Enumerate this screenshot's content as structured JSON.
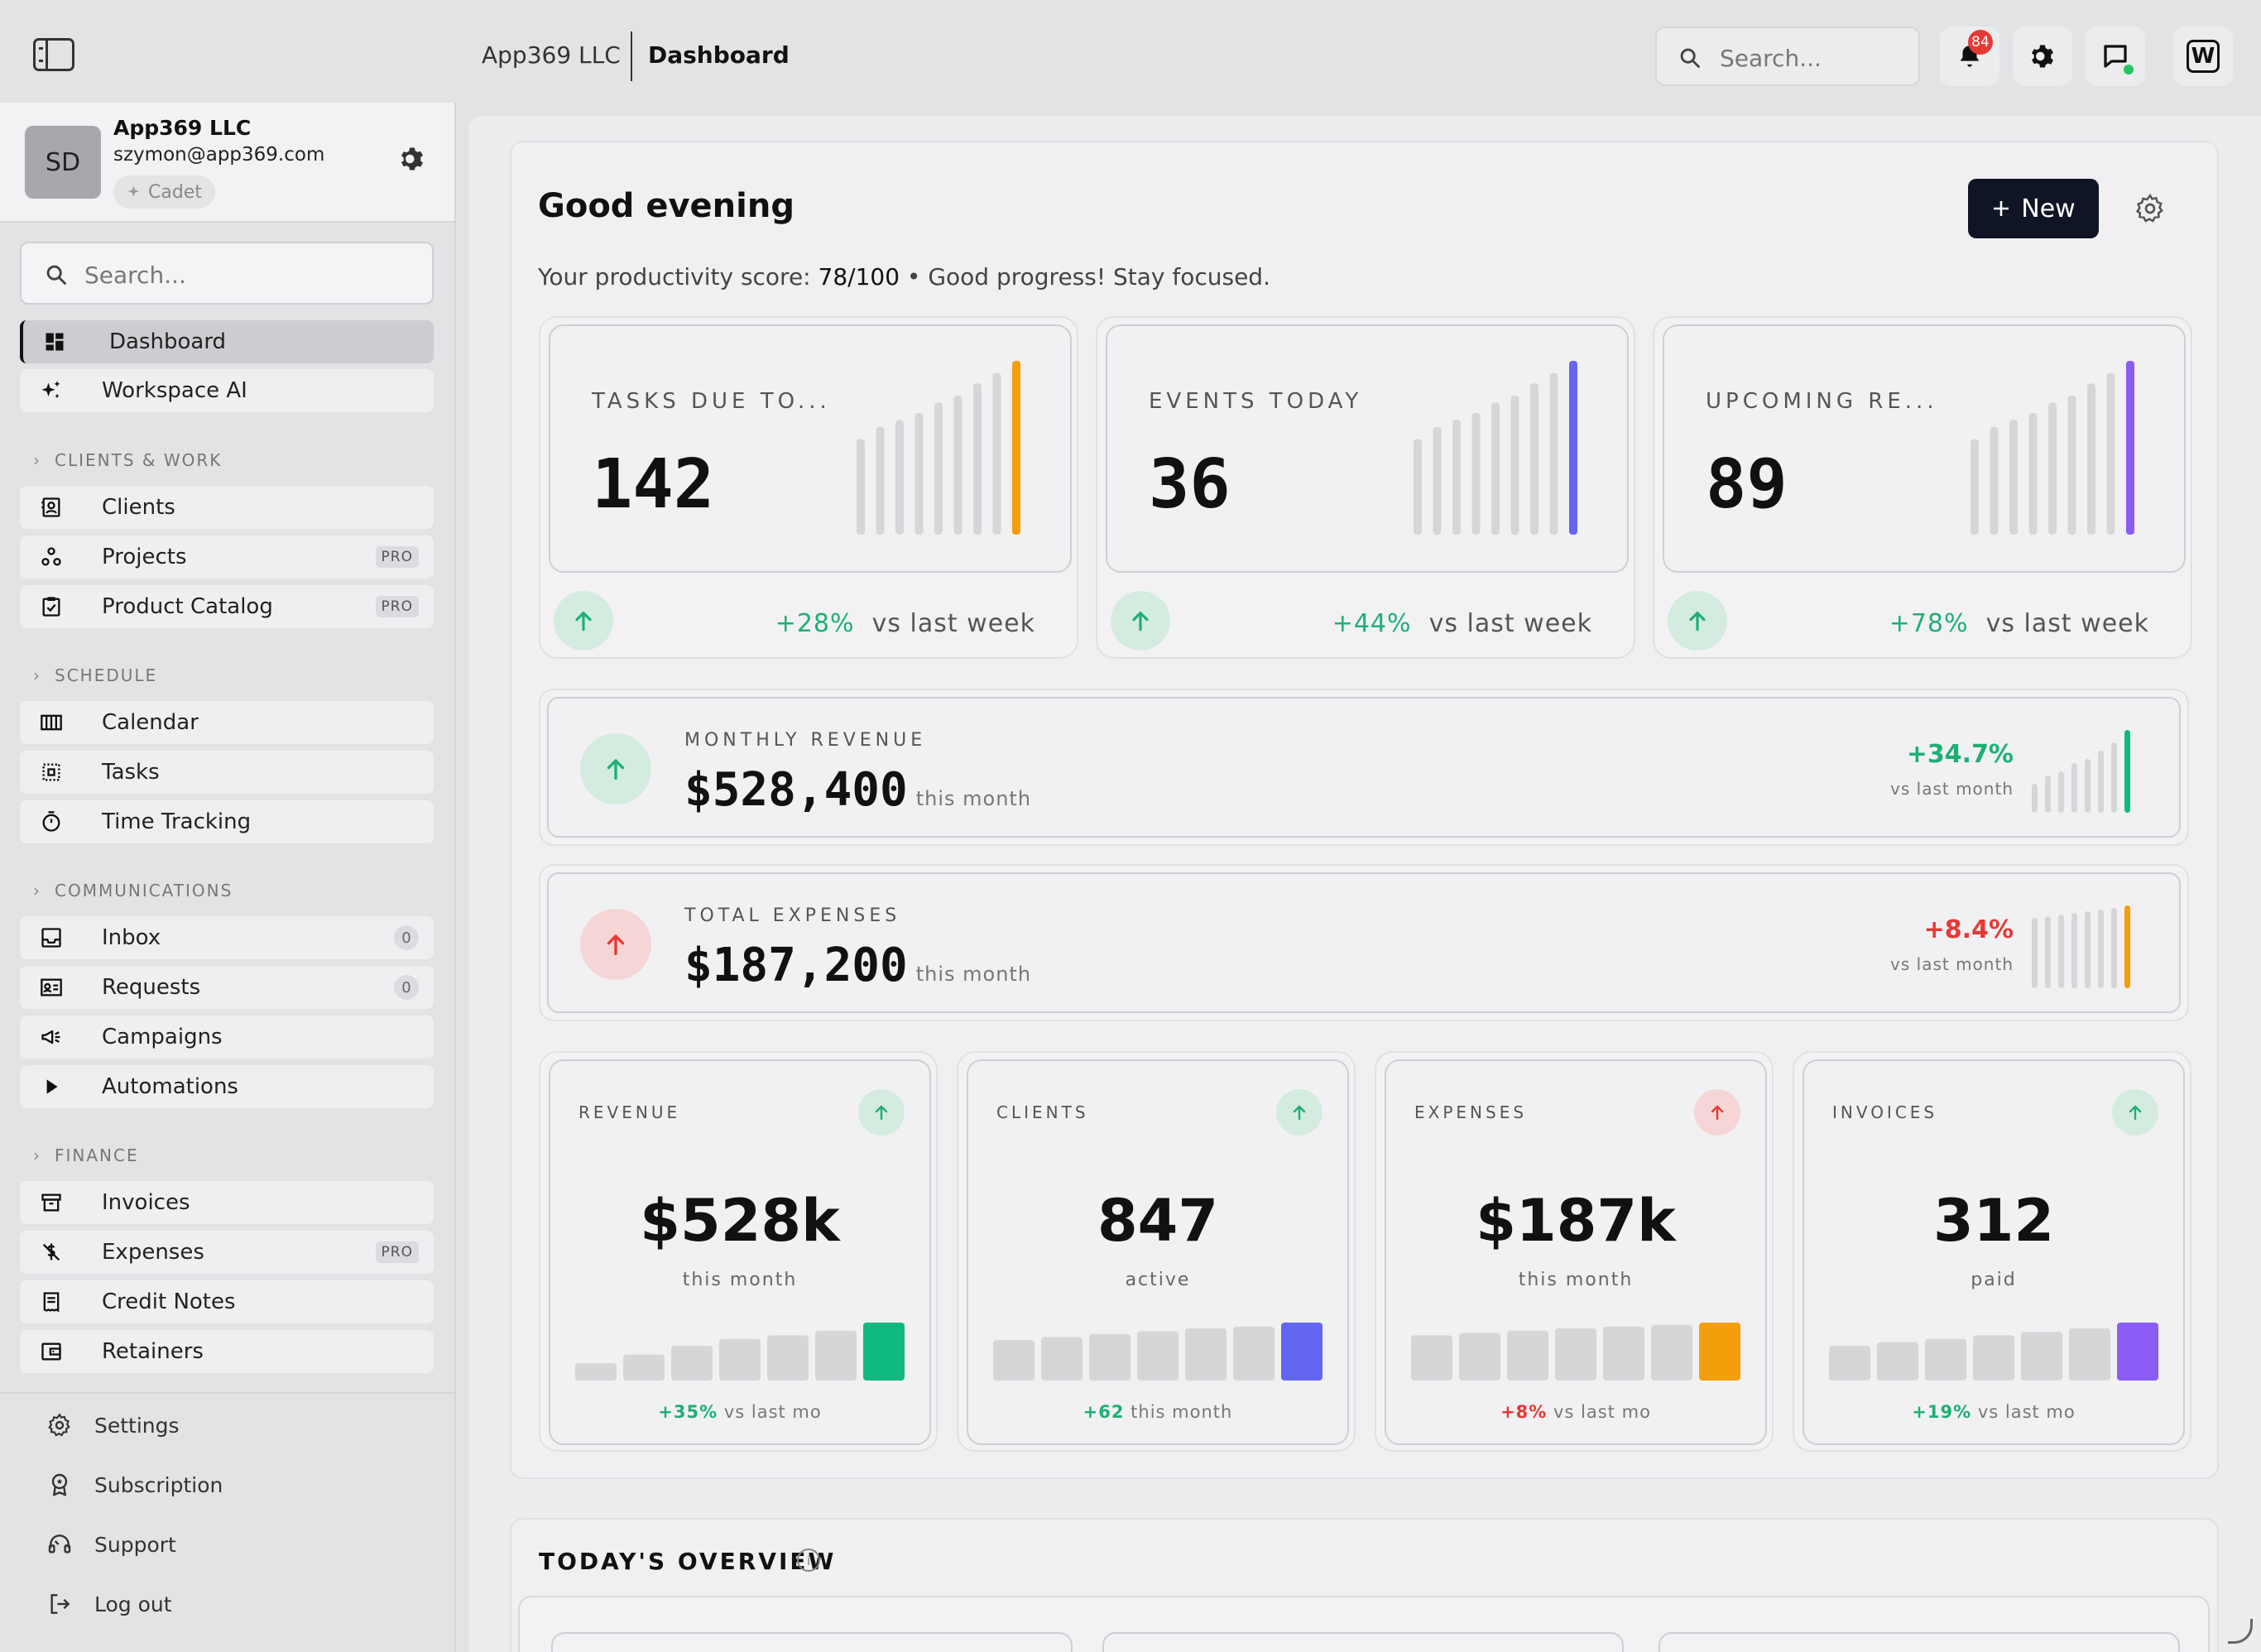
{
  "topbar": {
    "company": "App369 LLC",
    "page": "Dashboard",
    "search_placeholder": "Search...",
    "notification_count": "84"
  },
  "profile": {
    "initials": "SD",
    "name": "App369 LLC",
    "email": "szymon@app369.com",
    "plan": "Cadet"
  },
  "sidebar": {
    "search_placeholder": "Search...",
    "top_items": [
      {
        "label": "Dashboard",
        "icon": "dashboard-icon",
        "active": true
      },
      {
        "label": "Workspace AI",
        "icon": "sparkles-icon"
      }
    ],
    "sections": [
      {
        "label": "CLIENTS & WORK",
        "items": [
          {
            "label": "Clients",
            "icon": "contact-icon"
          },
          {
            "label": "Projects",
            "icon": "nodes-icon",
            "badge": "PRO"
          },
          {
            "label": "Product Catalog",
            "icon": "clipboard-check-icon",
            "badge": "PRO"
          }
        ]
      },
      {
        "label": "SCHEDULE",
        "items": [
          {
            "label": "Calendar",
            "icon": "calendar-icon"
          },
          {
            "label": "Tasks",
            "icon": "tasks-icon"
          },
          {
            "label": "Time Tracking",
            "icon": "stopwatch-icon"
          }
        ]
      },
      {
        "label": "COMMUNICATIONS",
        "items": [
          {
            "label": "Inbox",
            "icon": "inbox-icon",
            "count": "0"
          },
          {
            "label": "Requests",
            "icon": "id-card-icon",
            "count": "0"
          },
          {
            "label": "Campaigns",
            "icon": "megaphone-icon"
          },
          {
            "label": "Automations",
            "icon": "play-icon"
          }
        ]
      },
      {
        "label": "FINANCE",
        "items": [
          {
            "label": "Invoices",
            "icon": "archive-icon"
          },
          {
            "label": "Expenses",
            "icon": "dollar-slash-icon",
            "badge": "PRO"
          },
          {
            "label": "Credit Notes",
            "icon": "receipt-icon"
          },
          {
            "label": "Retainers",
            "icon": "wallet-icon"
          }
        ]
      }
    ],
    "bottom_items": [
      {
        "label": "Settings",
        "icon": "gear-icon"
      },
      {
        "label": "Subscription",
        "icon": "award-icon"
      },
      {
        "label": "Support",
        "icon": "headset-icon"
      },
      {
        "label": "Log out",
        "icon": "logout-icon"
      }
    ]
  },
  "main": {
    "greeting": "Good evening",
    "new_button": "New",
    "score_prefix": "Your productivity score: ",
    "score_value": "78/100",
    "score_suffix": " • Good progress! Stay focused.",
    "stats": [
      {
        "label": "TASKS DUE TO...",
        "value": "142",
        "change": "+28%",
        "change_suffix": "vs last week",
        "accent": "#f59e0b"
      },
      {
        "label": "EVENTS TODAY",
        "value": "36",
        "change": "+44%",
        "change_suffix": "vs last week",
        "accent": "#6366f1"
      },
      {
        "label": "UPCOMING RE...",
        "value": "89",
        "change": "+78%",
        "change_suffix": "vs last week",
        "accent": "#8b5cf6"
      }
    ],
    "wide_cards": [
      {
        "label": "MONTHLY REVENUE",
        "value": "$528,400",
        "sub": "this month",
        "change": "+34.7%",
        "change_sub": "vs last month",
        "direction": "up",
        "accent": "#10b981"
      },
      {
        "label": "TOTAL EXPENSES",
        "value": "$187,200",
        "sub": "this month",
        "change": "+8.4%",
        "change_sub": "vs last month",
        "direction": "up-bad",
        "accent": "#f59e0b"
      }
    ],
    "mini_cards": [
      {
        "label": "REVENUE",
        "value": "$528k",
        "sub": "this month",
        "foot_value": "+35%",
        "foot_suffix": "vs last mo",
        "good": true,
        "accent": "#10b981",
        "bars": [
          0.3,
          0.45,
          0.6,
          0.72,
          0.78,
          0.86,
          1
        ]
      },
      {
        "label": "CLIENTS",
        "value": "847",
        "sub": "active",
        "foot_value": "+62",
        "foot_suffix": "this month",
        "good": true,
        "accent": "#6366f1",
        "bars": [
          0.7,
          0.75,
          0.8,
          0.85,
          0.9,
          0.93,
          1
        ]
      },
      {
        "label": "EXPENSES",
        "value": "$187k",
        "sub": "this month",
        "foot_value": "+8%",
        "foot_suffix": "vs last mo",
        "good": false,
        "accent": "#f59e0b",
        "bars": [
          0.78,
          0.82,
          0.86,
          0.9,
          0.93,
          0.96,
          1
        ]
      },
      {
        "label": "INVOICES",
        "value": "312",
        "sub": "paid",
        "foot_value": "+19%",
        "foot_suffix": "vs last mo",
        "good": true,
        "accent": "#8b5cf6",
        "bars": [
          0.6,
          0.66,
          0.72,
          0.78,
          0.84,
          0.9,
          1
        ]
      }
    ],
    "overview_title": "TODAY'S OVERVIEW"
  },
  "colors": {
    "positive": "#1db074",
    "negative": "#e53935",
    "bar_gray": "#d6d6d9"
  }
}
